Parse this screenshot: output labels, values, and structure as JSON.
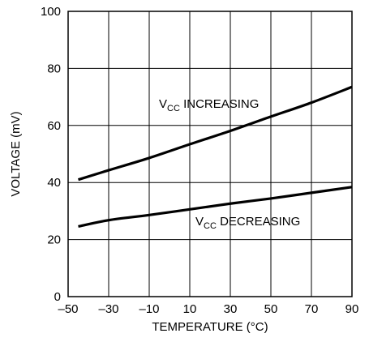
{
  "chart_data": {
    "type": "line",
    "xlabel": "TEMPERATURE (°C)",
    "ylabel": "VOLTAGE (mV)",
    "xlim": [
      -50,
      90
    ],
    "ylim": [
      0,
      100
    ],
    "x_ticks": [
      -50,
      -30,
      -10,
      10,
      30,
      50,
      70,
      90
    ],
    "x_tick_labels": [
      "–50",
      "–30",
      "–10",
      "10",
      "30",
      "50",
      "70",
      "90"
    ],
    "y_ticks": [
      0,
      20,
      40,
      60,
      80,
      100
    ],
    "y_tick_labels": [
      "0",
      "20",
      "40",
      "60",
      "80",
      "100"
    ],
    "grid": true,
    "series": [
      {
        "name": "VCC INCREASING",
        "label": {
          "main": "V",
          "sub": "CC",
          "rest": " INCREASING"
        },
        "x": [
          -45,
          -30,
          -10,
          10,
          30,
          50,
          70,
          90
        ],
        "y": [
          41,
          44.3,
          48.6,
          53.4,
          58.1,
          63.1,
          68,
          73.5
        ],
        "color": "#000000"
      },
      {
        "name": "VCC DECREASING",
        "label": {
          "main": "V",
          "sub": "CC",
          "rest": " DECREASING"
        },
        "x": [
          -45,
          -30,
          -10,
          10,
          30,
          50,
          70,
          90
        ],
        "y": [
          24.6,
          26.8,
          28.6,
          30.6,
          32.6,
          34.4,
          36.4,
          38.4
        ],
        "color": "#000000"
      }
    ]
  }
}
